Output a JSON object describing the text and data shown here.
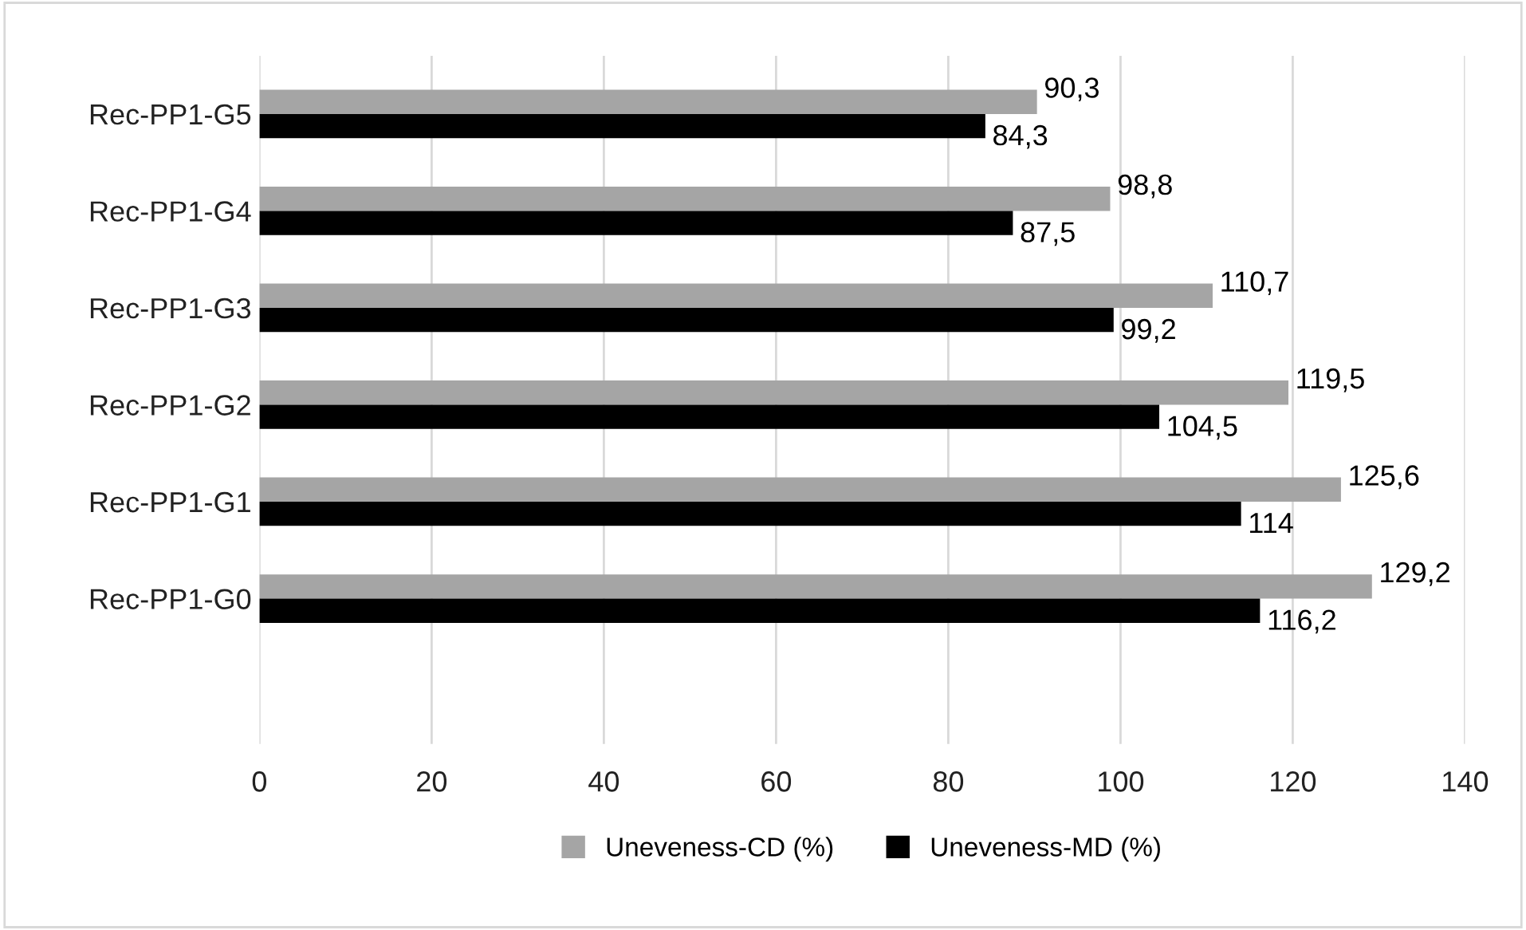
{
  "chart_data": {
    "type": "bar",
    "orientation": "horizontal",
    "categories": [
      "Rec-PP1-G5",
      "Rec-PP1-G4",
      "Rec-PP1-G3",
      "Rec-PP1-G2",
      "Rec-PP1-G1",
      "Rec-PP1-G0"
    ],
    "series": [
      {
        "name": "Uneveness-CD (%)",
        "color": "#a5a5a5",
        "values": [
          90.3,
          98.8,
          110.7,
          119.5,
          125.6,
          129.2
        ],
        "value_labels": [
          "90,3",
          "98,8",
          "110,7",
          "119,5",
          "125,6",
          "129,2"
        ]
      },
      {
        "name": "Uneveness-MD (%)",
        "color": "#000000",
        "values": [
          84.3,
          87.5,
          99.2,
          104.5,
          114,
          116.2
        ],
        "value_labels": [
          "84,3",
          "87,5",
          "99,2",
          "104,5",
          "114",
          "116,2"
        ]
      }
    ],
    "xlim": [
      0,
      140
    ],
    "xticks": [
      0,
      20,
      40,
      60,
      80,
      100,
      120,
      140
    ],
    "grid": "x",
    "legend": "bottom"
  }
}
